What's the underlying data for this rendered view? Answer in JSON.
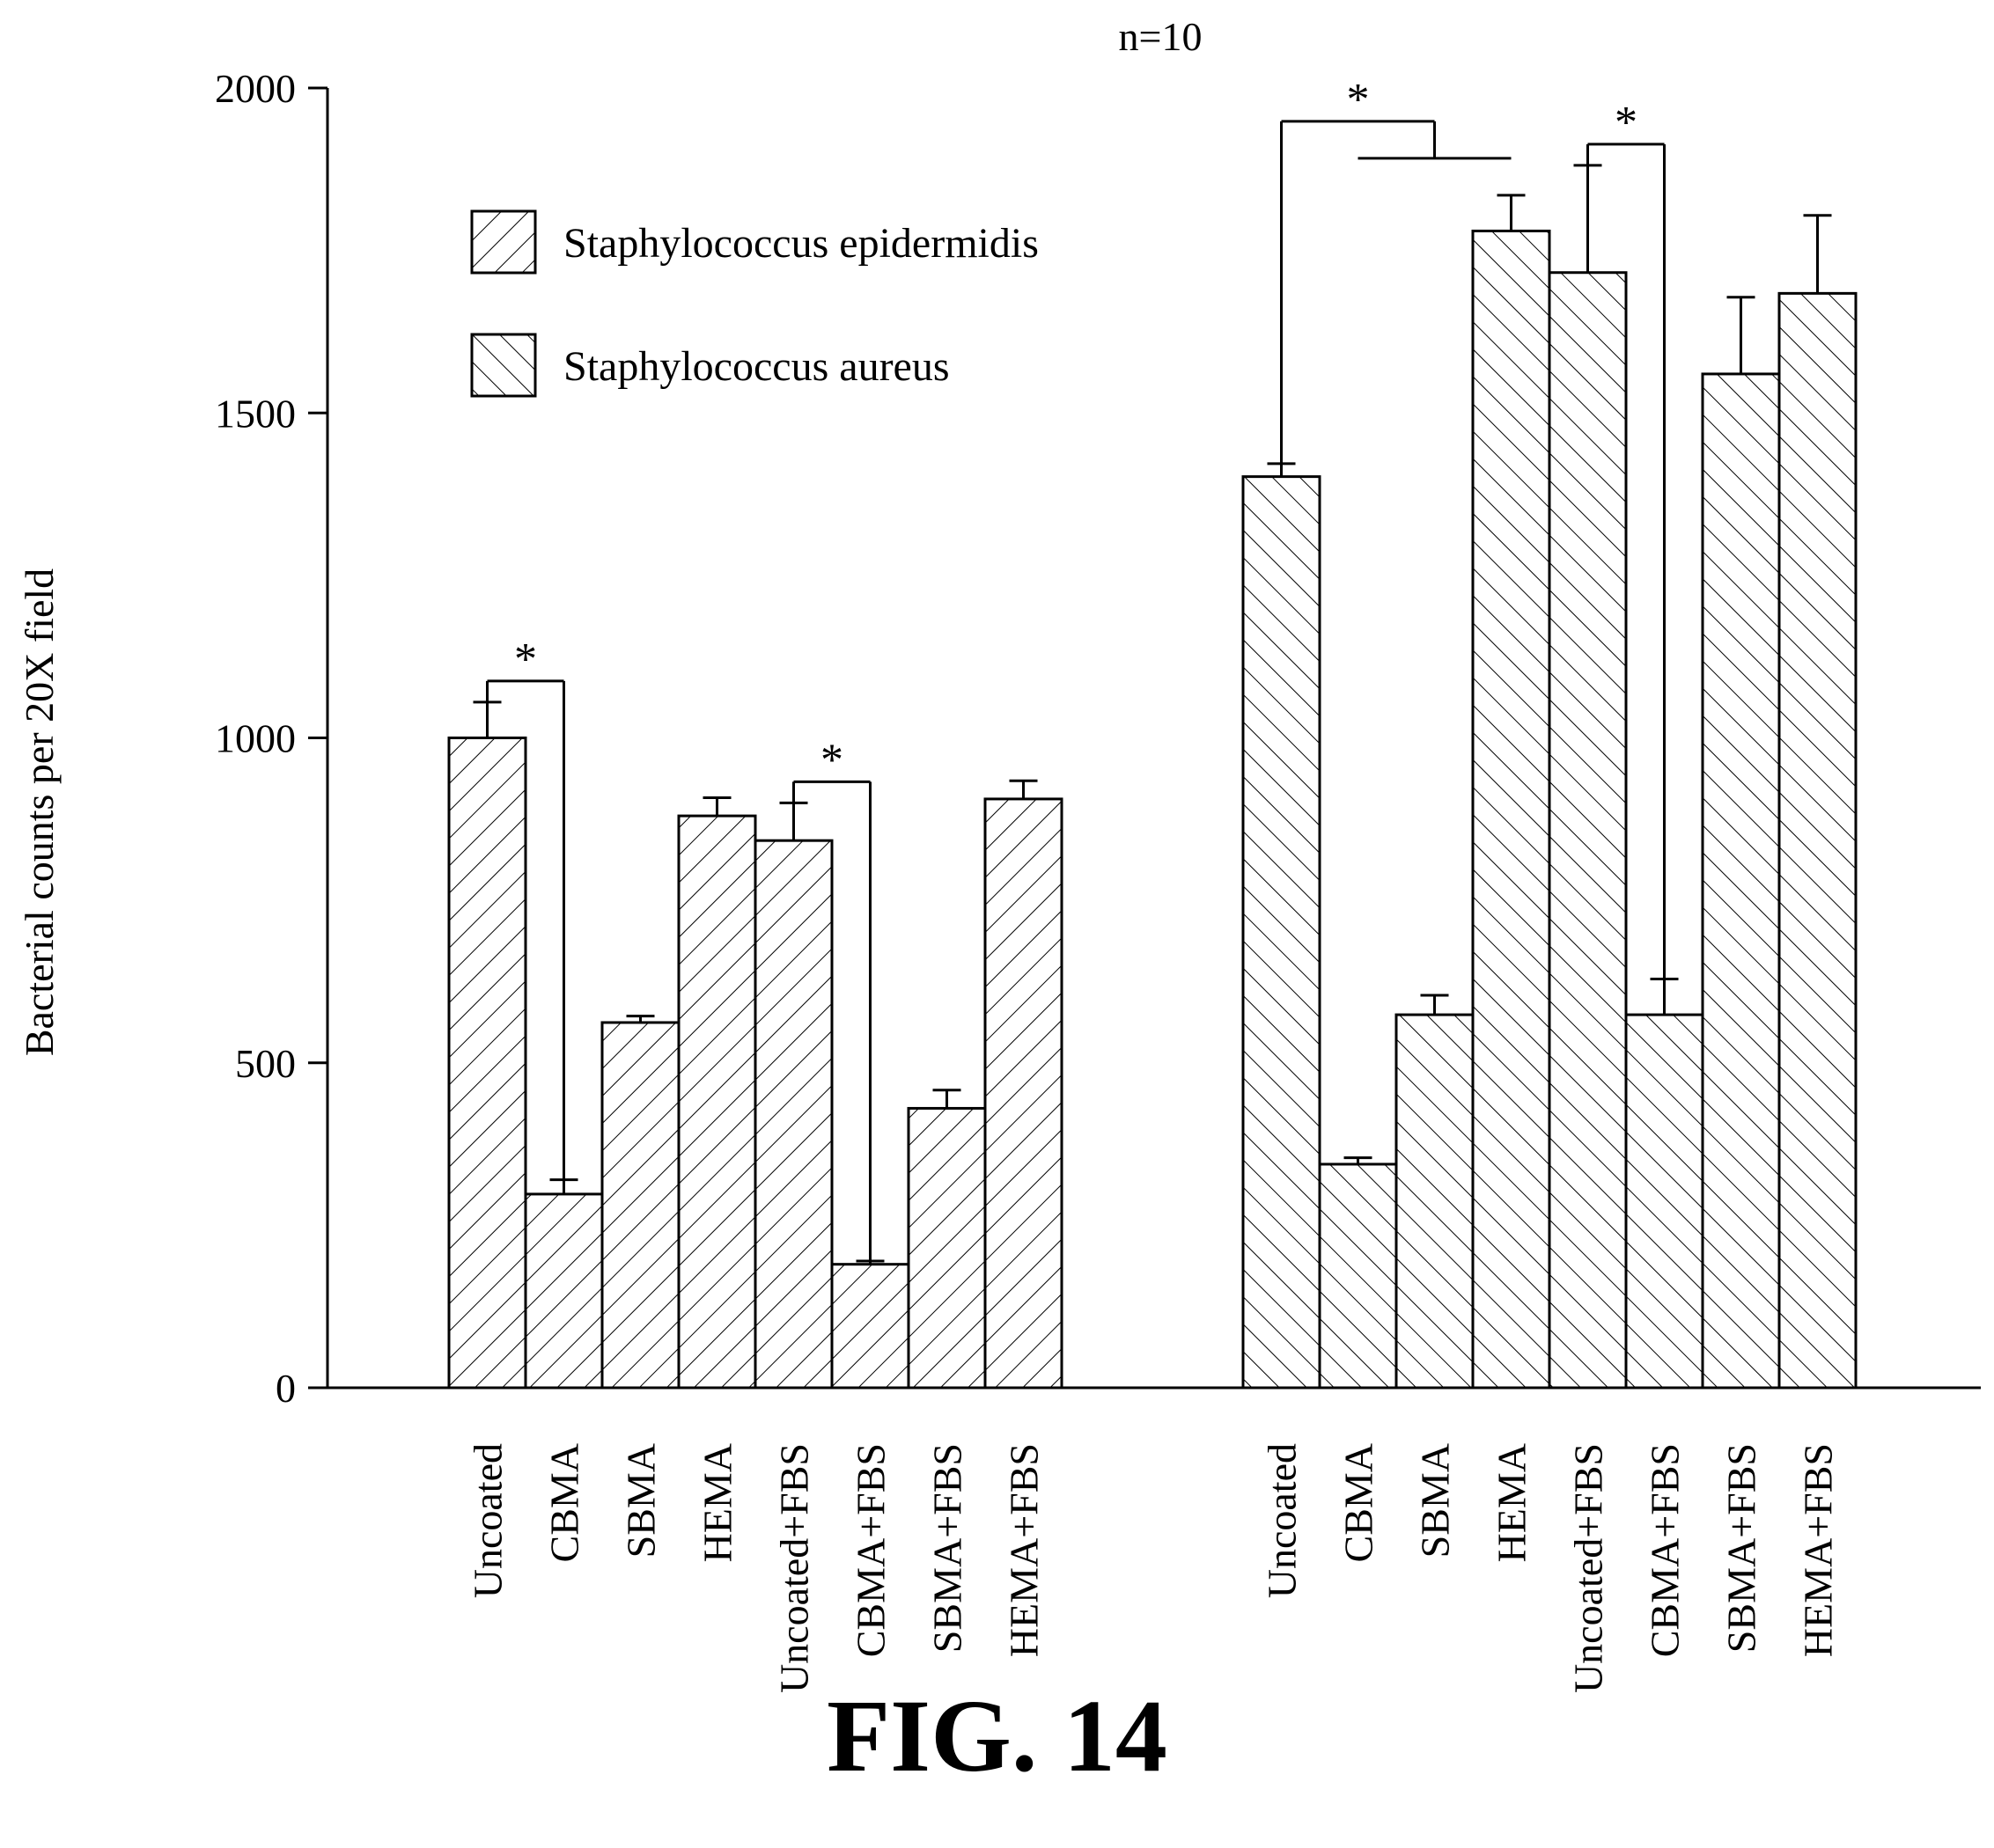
{
  "chart_data": {
    "type": "bar",
    "title": "n=10",
    "ylabel": "Bacterial counts per 20X field",
    "xlabel": "",
    "ylim": [
      0,
      2000
    ],
    "yticks": [
      0,
      500,
      1000,
      1500,
      2000
    ],
    "grid": false,
    "legend_position": "top-left",
    "categories": [
      "Uncoated",
      "CBMA",
      "SBMA",
      "HEMA",
      "Uncoated+FBS",
      "CBMA+FBS",
      "SBMA+FBS",
      "HEMA+FBS"
    ],
    "series": [
      {
        "name": "Staphylococcus epidermidis",
        "hatch": "forward",
        "values": [
          1000,
          298,
          562,
          880,
          842,
          190,
          430,
          906
        ],
        "errors": [
          55,
          22,
          10,
          28,
          58,
          5,
          28,
          28
        ]
      },
      {
        "name": "Staphylococcus aureus",
        "hatch": "backward",
        "values": [
          1402,
          344,
          574,
          1780,
          1716,
          574,
          1560,
          1684
        ],
        "errors": [
          20,
          10,
          30,
          55,
          165,
          55,
          118,
          120
        ]
      }
    ],
    "annotations": [
      {
        "text": "*",
        "series": 0,
        "from": 0,
        "to": 1
      },
      {
        "text": "*",
        "series": 0,
        "from": 4,
        "to": 5
      },
      {
        "text": "*",
        "series": 1,
        "from": 0,
        "to": [
          1,
          2,
          3
        ]
      },
      {
        "text": "*",
        "series": 1,
        "from": 4,
        "to": 5
      }
    ]
  },
  "figure_label": "FIG. 14",
  "colors": {
    "ink": "#000000",
    "background": "#ffffff"
  }
}
